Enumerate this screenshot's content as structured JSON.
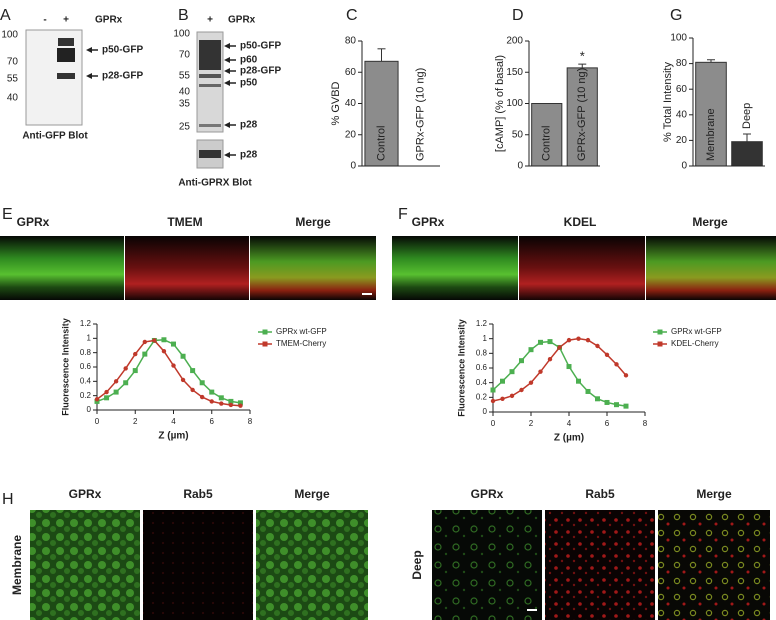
{
  "panel_labels": [
    "A",
    "B",
    "C",
    "D",
    "G",
    "E",
    "F",
    "H"
  ],
  "blot_a": {
    "lanes": [
      "-",
      "+"
    ],
    "condition": "GPRx",
    "markers": [
      100,
      70,
      55,
      40
    ],
    "bands": [
      "p50-GFP",
      "p28-GFP"
    ],
    "caption": "Anti-GFP Blot"
  },
  "blot_b": {
    "lanes": [
      "+"
    ],
    "condition": "GPRx",
    "markers": [
      100,
      70,
      55,
      40,
      35,
      25
    ],
    "bands": [
      "p50-GFP",
      "p60",
      "p28-GFP",
      "p50",
      "p28",
      "p28"
    ],
    "caption": "Anti-GPRX Blot"
  },
  "panel_e_channels": [
    "GPRx",
    "TMEM",
    "Merge"
  ],
  "panel_f_channels": [
    "GPRx",
    "KDEL",
    "Merge"
  ],
  "panel_h": {
    "membrane_channels": [
      "GPRx",
      "Rab5",
      "Merge"
    ],
    "deep_channels": [
      "GPRx",
      "Rab5",
      "Merge"
    ],
    "rows": [
      "Membrane",
      "Deep"
    ]
  },
  "chart_data": [
    {
      "type": "bar",
      "ylabel": "% GVBD",
      "categories": [
        "Control",
        "GPRx-GFP (10 ng)"
      ],
      "values": [
        67,
        0
      ],
      "errors": [
        8,
        0
      ],
      "colors": [
        "#8c8c8c",
        "#8c8c8c"
      ],
      "ylim": [
        0,
        80
      ],
      "yticks": [
        0,
        20,
        40,
        60,
        80
      ]
    },
    {
      "type": "bar",
      "ylabel": "[cAMP] (% of basal)",
      "categories": [
        "Control",
        "GPRx-GFP (10 ng)"
      ],
      "values": [
        100,
        157
      ],
      "errors": [
        0,
        6
      ],
      "colors": [
        "#8c8c8c",
        "#8c8c8c"
      ],
      "ylim": [
        0,
        200
      ],
      "yticks": [
        0,
        50,
        100,
        150,
        200
      ],
      "annotation": "*"
    },
    {
      "type": "bar",
      "ylabel": "% Total Intensity",
      "categories": [
        "Membrane",
        "Deep"
      ],
      "values": [
        81,
        19
      ],
      "errors": [
        2,
        6
      ],
      "colors": [
        "#8c8c8c",
        "#333333"
      ],
      "ylim": [
        0,
        100
      ],
      "yticks": [
        0,
        20,
        40,
        60,
        80,
        100
      ]
    },
    {
      "type": "line",
      "ylabel": "Fluorescence Intensity",
      "xlabel": "Z (µm)",
      "x": [
        0,
        0.5,
        1,
        1.5,
        2,
        2.5,
        3,
        3.5,
        4,
        4.5,
        5,
        5.5,
        6,
        6.5,
        7,
        7.5
      ],
      "series": [
        {
          "name": "GPRx wt-GFP",
          "color": "#4caf50",
          "values": [
            0.12,
            0.17,
            0.25,
            0.38,
            0.55,
            0.78,
            0.97,
            0.98,
            0.92,
            0.75,
            0.55,
            0.38,
            0.25,
            0.17,
            0.12,
            0.1
          ]
        },
        {
          "name": "TMEM-Cherry",
          "color": "#c0392b",
          "values": [
            0.15,
            0.25,
            0.4,
            0.58,
            0.78,
            0.95,
            0.97,
            0.82,
            0.62,
            0.42,
            0.28,
            0.18,
            0.12,
            0.09,
            0.07,
            0.06
          ]
        }
      ],
      "xlim": [
        0,
        8
      ],
      "xticks": [
        0,
        2,
        4,
        6,
        8
      ],
      "ylim": [
        0,
        1.2
      ],
      "yticks": [
        0,
        0.2,
        0.4,
        0.6,
        0.8,
        1,
        1.2
      ]
    },
    {
      "type": "line",
      "ylabel": "Fluorescence Intensity",
      "xlabel": "Z (µm)",
      "x": [
        0,
        0.5,
        1,
        1.5,
        2,
        2.5,
        3,
        3.5,
        4,
        4.5,
        5,
        5.5,
        6,
        6.5,
        7
      ],
      "series": [
        {
          "name": "GPRx wt-GFP",
          "color": "#4caf50",
          "values": [
            0.3,
            0.42,
            0.55,
            0.7,
            0.85,
            0.95,
            0.96,
            0.88,
            0.62,
            0.42,
            0.28,
            0.18,
            0.13,
            0.1,
            0.08
          ]
        },
        {
          "name": "KDEL-Cherry",
          "color": "#c0392b",
          "values": [
            0.15,
            0.18,
            0.22,
            0.3,
            0.4,
            0.55,
            0.72,
            0.88,
            0.98,
            1.0,
            0.98,
            0.9,
            0.78,
            0.65,
            0.5
          ]
        }
      ],
      "xlim": [
        0,
        8
      ],
      "xticks": [
        0,
        2,
        4,
        6,
        8
      ],
      "ylim": [
        0,
        1.2
      ],
      "yticks": [
        0,
        0.2,
        0.4,
        0.6,
        0.8,
        1,
        1.2
      ]
    }
  ]
}
